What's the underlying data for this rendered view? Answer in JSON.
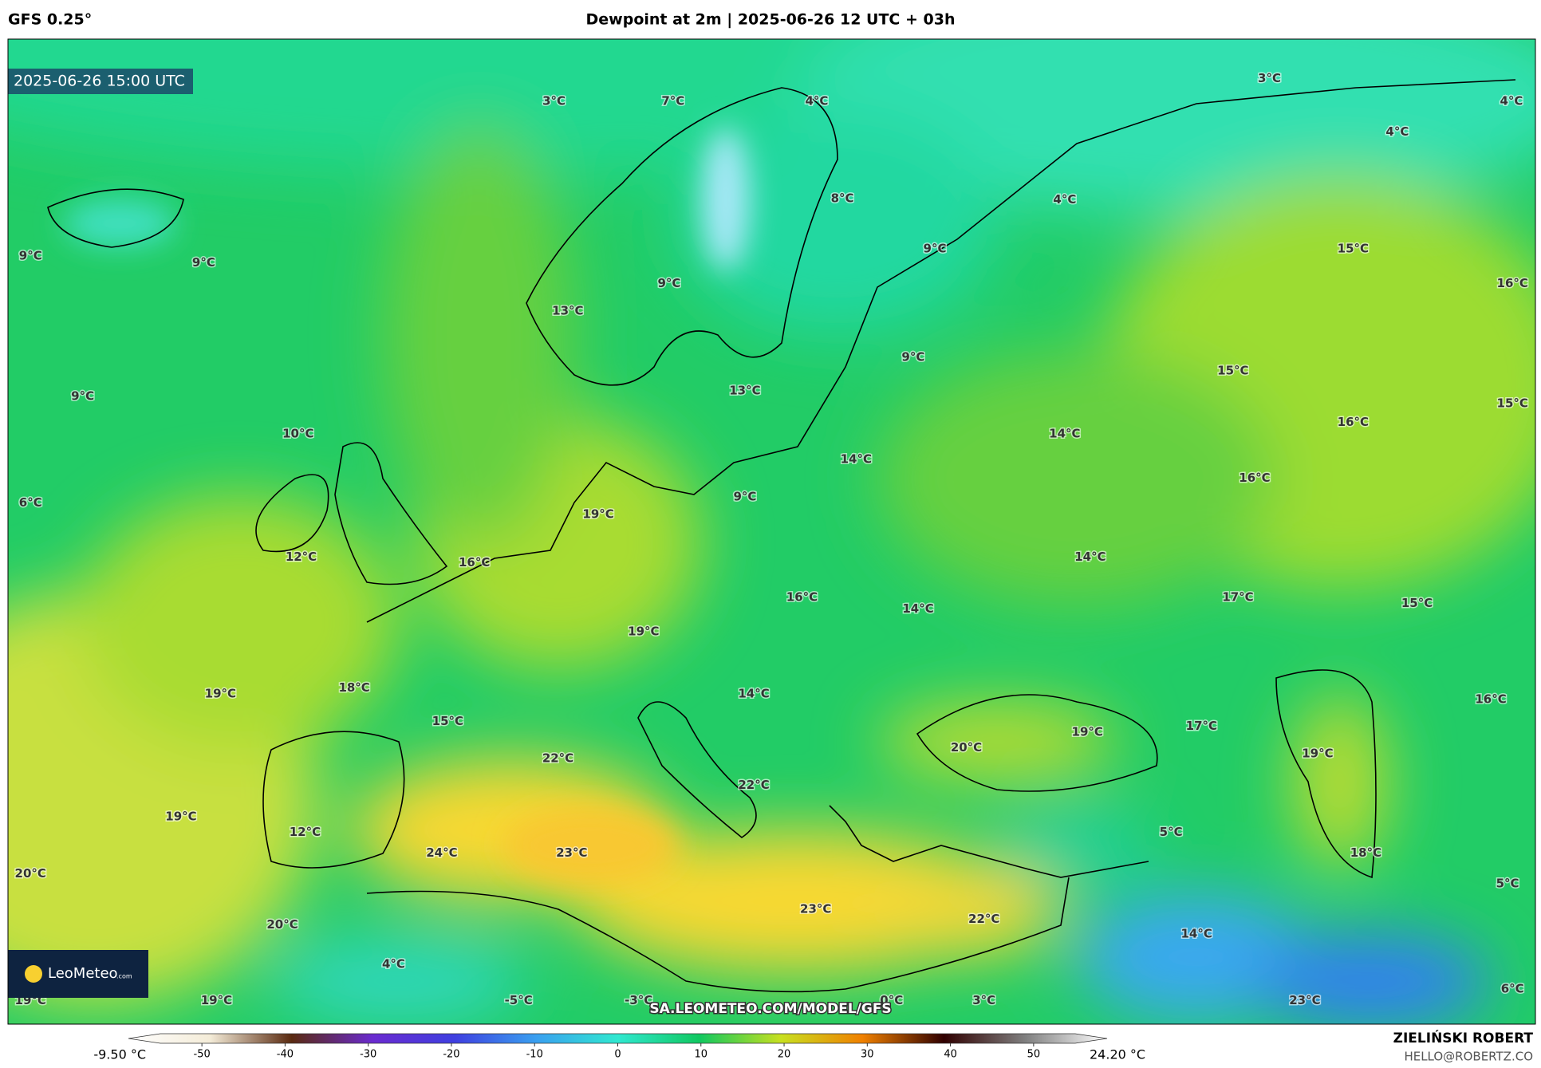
{
  "header": {
    "model": "GFS 0.25°",
    "title": "Dewpoint at 2m | 2025-06-26 12 UTC + 03h"
  },
  "map": {
    "valid_time": "2025-06-26 15:00 UTC",
    "watermark": "SA.LEOMETEO.COM/MODEL/GFS",
    "logo": "LeoMeteo",
    "logo_suffix": ".com",
    "labels": [
      "3°C",
      "7°C",
      "4°C",
      "3°C",
      "4°C",
      "4°C",
      "8°C",
      "4°C",
      "9°C",
      "15°C",
      "16°C",
      "9°C",
      "9°C",
      "9°C",
      "13°C",
      "9°C",
      "15°C",
      "9°C",
      "13°C",
      "15°C",
      "10°C",
      "14°C",
      "16°C",
      "14°C",
      "16°C",
      "6°C",
      "9°C",
      "19°C",
      "12°C",
      "16°C",
      "14°C",
      "16°C",
      "17°C",
      "15°C",
      "14°C",
      "19°C",
      "19°C",
      "18°C",
      "14°C",
      "16°C",
      "15°C",
      "17°C",
      "19°C",
      "20°C",
      "22°C",
      "19°C",
      "22°C",
      "19°C",
      "12°C",
      "5°C",
      "24°C",
      "23°C",
      "18°C",
      "20°C",
      "5°C",
      "23°C",
      "22°C",
      "20°C",
      "14°C",
      "4°C",
      "19°C",
      "19°C",
      "-5°C",
      "-3°C",
      "0°C",
      "3°C",
      "23°C",
      "6°C"
    ]
  },
  "colorbar": {
    "min_label": "-9.50 °C",
    "max_label": "24.20 °C",
    "lim": [
      -55,
      55
    ],
    "ticks": [
      -50,
      -40,
      -30,
      -20,
      -10,
      0,
      10,
      20,
      30,
      40,
      50
    ],
    "colors": [
      "#ffffff",
      "#f4ecd8",
      "#5a2a10",
      "#6a2bd0",
      "#3f3fe0",
      "#3aa0f0",
      "#30e8d0",
      "#10c860",
      "#c8e020",
      "#f08000",
      "#300000",
      "#808080",
      "#ffffff"
    ]
  },
  "footer": {
    "author": "ZIELIŃSKI ROBERT",
    "email": "HELLO@ROBERTZ.CO"
  }
}
